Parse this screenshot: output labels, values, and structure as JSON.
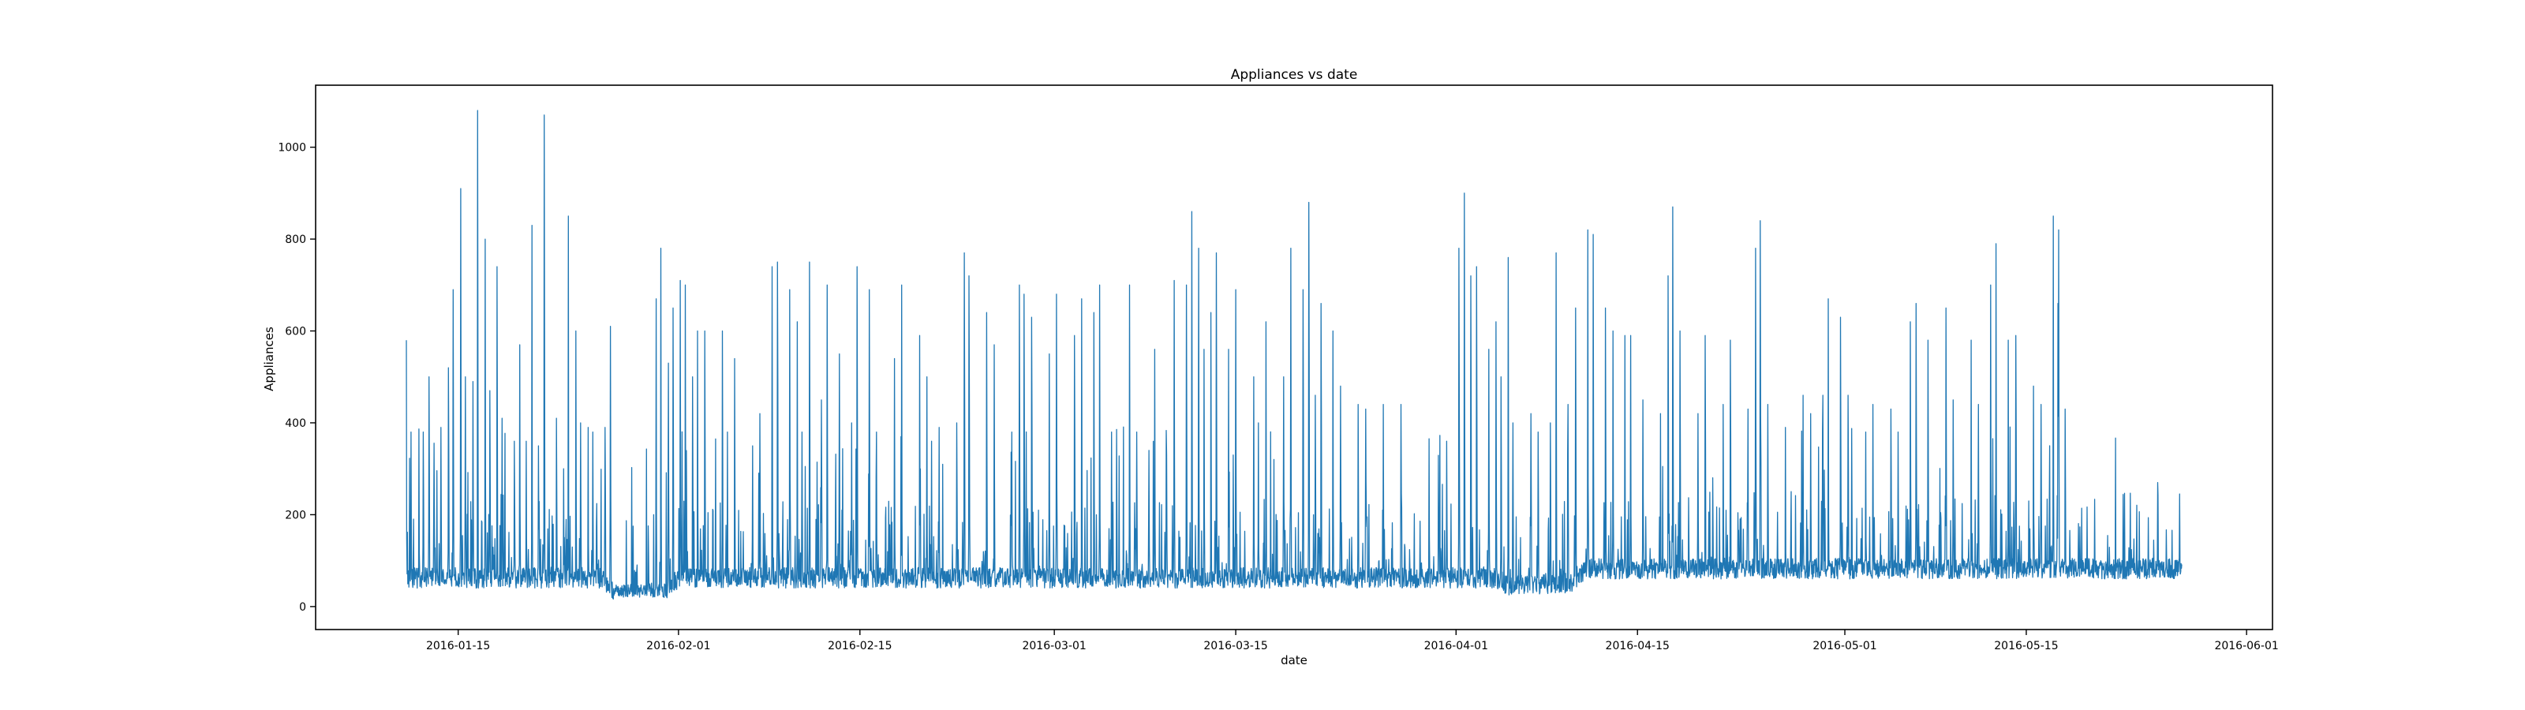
{
  "chart_data": {
    "type": "line",
    "title": "Appliances vs date",
    "xlabel": "date",
    "ylabel": "Appliances",
    "xlim": [
      "2016-01-04",
      "2016-06-03"
    ],
    "ylim": [
      -50,
      1135
    ],
    "x_ticks": [
      "2016-01-15",
      "2016-02-01",
      "2016-02-15",
      "2016-03-01",
      "2016-03-15",
      "2016-04-01",
      "2016-04-15",
      "2016-05-01",
      "2016-05-15",
      "2016-06-01"
    ],
    "y_ticks": [
      0,
      200,
      400,
      600,
      800,
      1000
    ],
    "grid": false,
    "legend": "none",
    "color": "#1f77b4",
    "x_start": "2016-01-11",
    "x_end": "2016-05-27",
    "baseline": [
      [
        0,
        60
      ],
      [
        15,
        60
      ],
      [
        16,
        35
      ],
      [
        20,
        35
      ],
      [
        21,
        60
      ],
      [
        84,
        60
      ],
      [
        85,
        45
      ],
      [
        90,
        50
      ],
      [
        91,
        80
      ],
      [
        136,
        80
      ]
    ],
    "peaks": [
      [
        "2016-01-11",
        580
      ],
      [
        "2016-01-11",
        380
      ],
      [
        "2016-01-12",
        500
      ],
      [
        "2016-01-12",
        380
      ],
      [
        "2016-01-13",
        390
      ],
      [
        "2016-01-14",
        520
      ],
      [
        "2016-01-14",
        690
      ],
      [
        "2016-01-15",
        910
      ],
      [
        "2016-01-15",
        500
      ],
      [
        "2016-01-16",
        490
      ],
      [
        "2016-01-16",
        1080
      ],
      [
        "2016-01-17",
        800
      ],
      [
        "2016-01-17",
        470
      ],
      [
        "2016-01-18",
        740
      ],
      [
        "2016-01-18",
        410
      ],
      [
        "2016-01-19",
        570
      ],
      [
        "2016-01-19",
        360
      ],
      [
        "2016-01-20",
        830
      ],
      [
        "2016-01-20",
        360
      ],
      [
        "2016-01-21",
        1070
      ],
      [
        "2016-01-21",
        350
      ],
      [
        "2016-01-22",
        410
      ],
      [
        "2016-01-23",
        300
      ],
      [
        "2016-01-23",
        850
      ],
      [
        "2016-01-24",
        600
      ],
      [
        "2016-01-24",
        400
      ],
      [
        "2016-01-25",
        390
      ],
      [
        "2016-01-25",
        380
      ],
      [
        "2016-01-26",
        610
      ],
      [
        "2016-01-26",
        390
      ],
      [
        "2016-01-29",
        110
      ],
      [
        "2016-01-30",
        670
      ],
      [
        "2016-01-30",
        780
      ],
      [
        "2016-01-31",
        530
      ],
      [
        "2016-01-31",
        650
      ],
      [
        "2016-02-01",
        710
      ],
      [
        "2016-02-01",
        700
      ],
      [
        "2016-02-02",
        500
      ],
      [
        "2016-02-02",
        600
      ],
      [
        "2016-02-03",
        600
      ],
      [
        "2016-02-04",
        600
      ],
      [
        "2016-02-04",
        380
      ],
      [
        "2016-02-05",
        540
      ],
      [
        "2016-02-06",
        350
      ],
      [
        "2016-02-07",
        420
      ],
      [
        "2016-02-08",
        750
      ],
      [
        "2016-02-08",
        740
      ],
      [
        "2016-02-09",
        690
      ],
      [
        "2016-02-10",
        620
      ],
      [
        "2016-02-10",
        380
      ],
      [
        "2016-02-11",
        750
      ],
      [
        "2016-02-12",
        700
      ],
      [
        "2016-02-12",
        450
      ],
      [
        "2016-02-13",
        550
      ],
      [
        "2016-02-14",
        740
      ],
      [
        "2016-02-14",
        400
      ],
      [
        "2016-02-15",
        690
      ],
      [
        "2016-02-16",
        380
      ],
      [
        "2016-02-17",
        540
      ],
      [
        "2016-02-18",
        700
      ],
      [
        "2016-02-19",
        590
      ],
      [
        "2016-02-20",
        500
      ],
      [
        "2016-02-20",
        360
      ],
      [
        "2016-02-21",
        390
      ],
      [
        "2016-02-22",
        400
      ],
      [
        "2016-02-23",
        770
      ],
      [
        "2016-02-23",
        720
      ],
      [
        "2016-02-24",
        640
      ],
      [
        "2016-02-25",
        570
      ],
      [
        "2016-02-26",
        380
      ],
      [
        "2016-02-27",
        700
      ],
      [
        "2016-02-27",
        680
      ],
      [
        "2016-02-28",
        630
      ],
      [
        "2016-02-29",
        550
      ],
      [
        "2016-03-01",
        680
      ],
      [
        "2016-03-02",
        590
      ],
      [
        "2016-03-03",
        670
      ],
      [
        "2016-03-04",
        700
      ],
      [
        "2016-03-04",
        640
      ],
      [
        "2016-03-05",
        380
      ],
      [
        "2016-03-06",
        700
      ],
      [
        "2016-03-07",
        380
      ],
      [
        "2016-03-08",
        560
      ],
      [
        "2016-03-08",
        340
      ],
      [
        "2016-03-09",
        330
      ],
      [
        "2016-03-10",
        710
      ],
      [
        "2016-03-11",
        860
      ],
      [
        "2016-03-11",
        700
      ],
      [
        "2016-03-12",
        560
      ],
      [
        "2016-03-12",
        780
      ],
      [
        "2016-03-13",
        770
      ],
      [
        "2016-03-13",
        640
      ],
      [
        "2016-03-14",
        560
      ],
      [
        "2016-03-15",
        690
      ],
      [
        "2016-03-16",
        500
      ],
      [
        "2016-03-16",
        400
      ],
      [
        "2016-03-17",
        620
      ],
      [
        "2016-03-18",
        500
      ],
      [
        "2016-03-19",
        780
      ],
      [
        "2016-03-20",
        880
      ],
      [
        "2016-03-20",
        690
      ],
      [
        "2016-03-21",
        660
      ],
      [
        "2016-03-21",
        460
      ],
      [
        "2016-03-22",
        600
      ],
      [
        "2016-03-23",
        480
      ],
      [
        "2016-03-24",
        440
      ],
      [
        "2016-03-25",
        430
      ],
      [
        "2016-03-26",
        440
      ],
      [
        "2016-03-27",
        440
      ],
      [
        "2016-03-29",
        95
      ],
      [
        "2016-03-30",
        130
      ],
      [
        "2016-03-31",
        360
      ],
      [
        "2016-04-01",
        900
      ],
      [
        "2016-04-01",
        780
      ],
      [
        "2016-04-02",
        740
      ],
      [
        "2016-04-02",
        720
      ],
      [
        "2016-04-03",
        560
      ],
      [
        "2016-04-04",
        620
      ],
      [
        "2016-04-04",
        500
      ],
      [
        "2016-04-05",
        760
      ],
      [
        "2016-04-05",
        400
      ],
      [
        "2016-04-06",
        420
      ],
      [
        "2016-04-07",
        380
      ],
      [
        "2016-04-08",
        770
      ],
      [
        "2016-04-08",
        400
      ],
      [
        "2016-04-09",
        440
      ],
      [
        "2016-04-10",
        650
      ],
      [
        "2016-04-11",
        810
      ],
      [
        "2016-04-11",
        820
      ],
      [
        "2016-04-12",
        650
      ],
      [
        "2016-04-13",
        600
      ],
      [
        "2016-04-14",
        590
      ],
      [
        "2016-04-14",
        590
      ],
      [
        "2016-04-15",
        450
      ],
      [
        "2016-04-16",
        420
      ],
      [
        "2016-04-17",
        720
      ],
      [
        "2016-04-17",
        870
      ],
      [
        "2016-04-18",
        600
      ],
      [
        "2016-04-19",
        420
      ],
      [
        "2016-04-20",
        590
      ],
      [
        "2016-04-21",
        440
      ],
      [
        "2016-04-22",
        580
      ],
      [
        "2016-04-23",
        430
      ],
      [
        "2016-04-24",
        780
      ],
      [
        "2016-04-24",
        840
      ],
      [
        "2016-04-25",
        440
      ],
      [
        "2016-04-26",
        390
      ],
      [
        "2016-04-27",
        460
      ],
      [
        "2016-04-28",
        420
      ],
      [
        "2016-04-29",
        670
      ],
      [
        "2016-04-29",
        460
      ],
      [
        "2016-04-30",
        630
      ],
      [
        "2016-05-01",
        460
      ],
      [
        "2016-05-02",
        380
      ],
      [
        "2016-05-03",
        440
      ],
      [
        "2016-05-04",
        430
      ],
      [
        "2016-05-05",
        380
      ],
      [
        "2016-05-06",
        660
      ],
      [
        "2016-05-06",
        620
      ],
      [
        "2016-05-07",
        580
      ],
      [
        "2016-05-08",
        650
      ],
      [
        "2016-05-09",
        450
      ],
      [
        "2016-05-10",
        580
      ],
      [
        "2016-05-11",
        440
      ],
      [
        "2016-05-12",
        790
      ],
      [
        "2016-05-12",
        700
      ],
      [
        "2016-05-13",
        580
      ],
      [
        "2016-05-14",
        590
      ],
      [
        "2016-05-15",
        480
      ],
      [
        "2016-05-16",
        440
      ],
      [
        "2016-05-17",
        820
      ],
      [
        "2016-05-17",
        850
      ],
      [
        "2016-05-17",
        660
      ],
      [
        "2016-05-18",
        430
      ]
    ]
  }
}
